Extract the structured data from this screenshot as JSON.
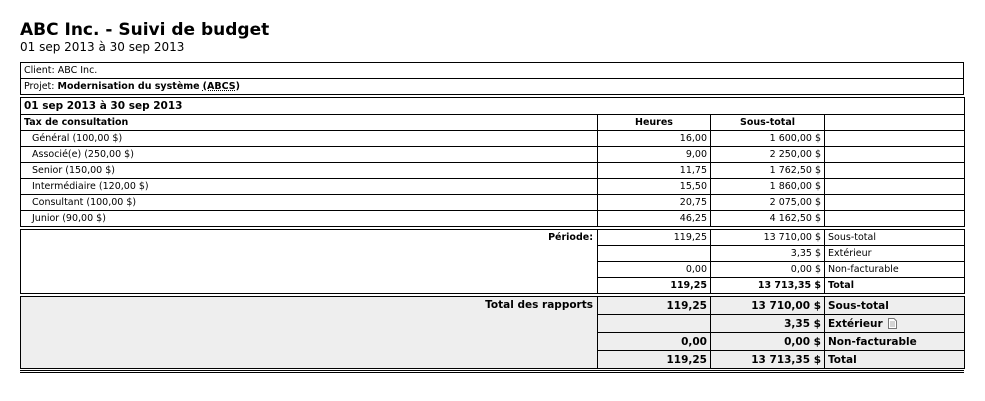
{
  "header": {
    "title": "ABC Inc. - Suivi de budget",
    "subtitle": "01 sep 2013 à 30 sep 2013"
  },
  "client": {
    "label": "Client:",
    "value": "ABC Inc."
  },
  "project": {
    "label": "Projet:",
    "name": "Modernisation du système",
    "code": "(ABCS)"
  },
  "period": "01 sep 2013 à 30 sep 2013",
  "columns": [
    "Tax de consultation",
    "Heures",
    "Sous-total"
  ],
  "rows": [
    [
      "Général (100,00 $)",
      "16,00",
      "1 600,00 $"
    ],
    [
      "Associé(e) (250,00 $)",
      "9,00",
      "2 250,00 $"
    ],
    [
      "Senior (150,00 $)",
      "11,75",
      "1 762,50 $"
    ],
    [
      "Intermédiaire (120,00 $)",
      "15,50",
      "1 860,00 $"
    ],
    [
      "Consultant (100,00 $)",
      "20,75",
      "2 075,00 $"
    ],
    [
      "Junior (90,00 $)",
      "46,25",
      "4 162,50 $"
    ]
  ],
  "period_summary": {
    "label": "Période:",
    "rows": [
      {
        "hours": "119,25",
        "amount": "13 710,00 $",
        "label": "Sous-total"
      },
      {
        "amount": "3,35 $",
        "label": "Extérieur"
      },
      {
        "hours": "0,00",
        "amount": "0,00 $",
        "label": "Non-facturable"
      },
      {
        "hours": "119,25",
        "amount": "13 713,35 $",
        "label": "Total"
      }
    ]
  },
  "report_total": {
    "label": "Total des rapports",
    "rows": [
      {
        "hours": "119,25",
        "amount": "13 710,00 $",
        "label": "Sous-total"
      },
      {
        "amount": "3,35 $",
        "label": "Extérieur"
      },
      {
        "hours": "0,00",
        "amount": "0,00 $",
        "label": "Non-facturable"
      },
      {
        "hours": "119,25",
        "amount": "13 713,35 $",
        "label": "Total"
      }
    ]
  }
}
